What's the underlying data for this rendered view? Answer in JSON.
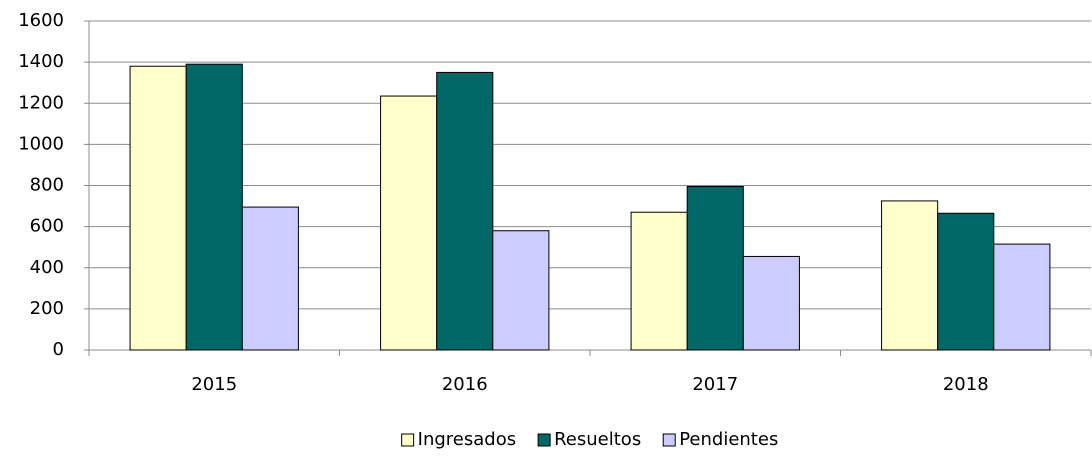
{
  "chart_data": {
    "type": "bar",
    "categories": [
      "2015",
      "2016",
      "2017",
      "2018"
    ],
    "series": [
      {
        "name": "Ingresados",
        "color": "#ffffcc",
        "values": [
          1380,
          1235,
          670,
          725
        ]
      },
      {
        "name": "Resueltos",
        "color": "#006666",
        "values": [
          1390,
          1350,
          795,
          665
        ]
      },
      {
        "name": "Pendientes",
        "color": "#ccccff",
        "values": [
          695,
          580,
          455,
          515
        ]
      }
    ],
    "ylim": [
      0,
      1600
    ],
    "yticks": [
      0,
      200,
      400,
      600,
      800,
      1000,
      1200,
      1400,
      1600
    ],
    "grid": true,
    "legend": "bottom"
  }
}
